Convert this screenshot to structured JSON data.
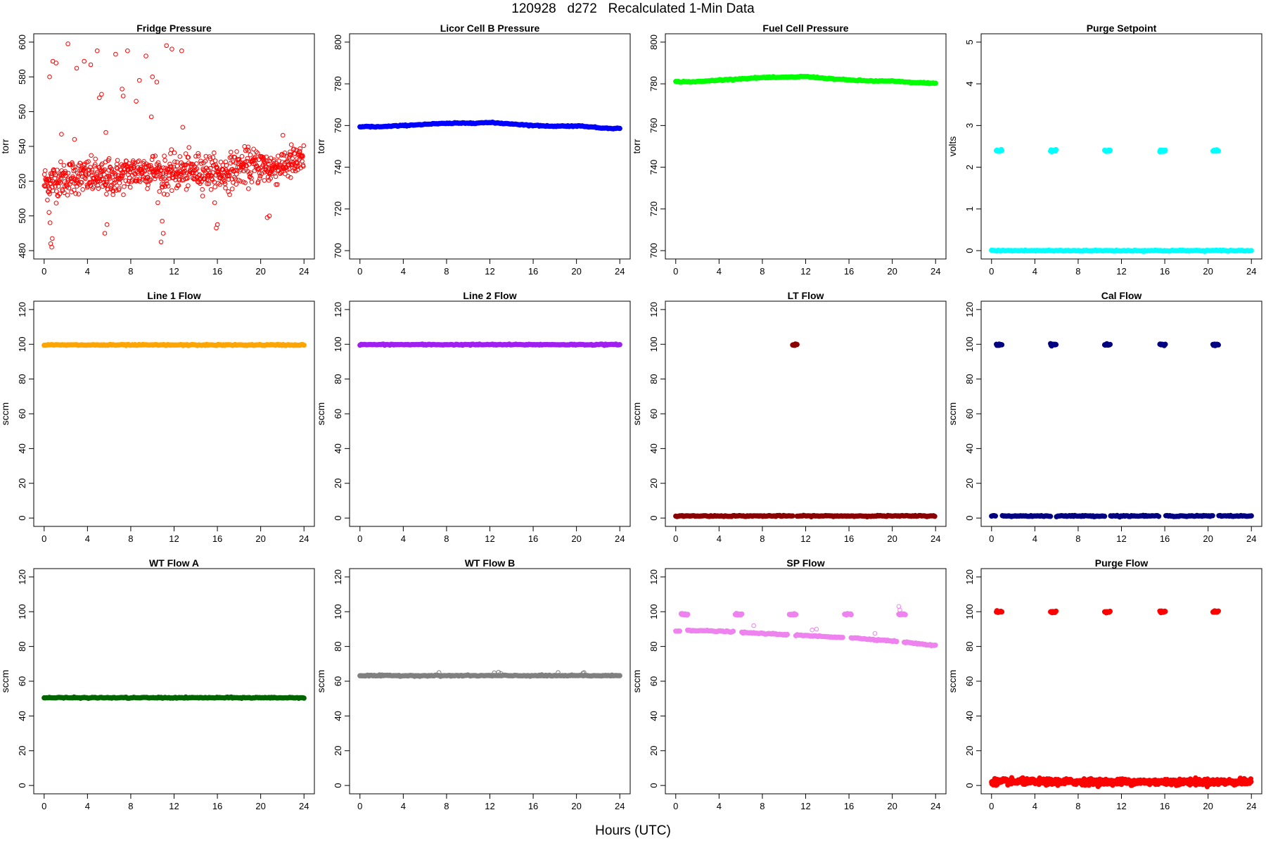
{
  "page": {
    "title": "120928   d272   Recalculated 1-Min Data",
    "xlabel": "Hours (UTC)"
  },
  "chart_data": [
    {
      "type": "scatter",
      "title": "Fridge Pressure",
      "ylabel": "torr",
      "ylim": [
        480,
        600
      ],
      "yticks": [
        480,
        500,
        520,
        540,
        560,
        580,
        600
      ],
      "xlim": [
        0,
        24
      ],
      "xticks": [
        0,
        4,
        8,
        12,
        16,
        20,
        24
      ],
      "color": "#ff0000",
      "marker": "open-circle",
      "series": [
        {
          "kind": "noise",
          "baseline": [
            [
              0,
              519
            ],
            [
              1.5,
              521
            ],
            [
              3,
              523
            ],
            [
              5,
              522
            ],
            [
              6,
              521
            ],
            [
              8,
              525
            ],
            [
              10,
              527
            ],
            [
              11,
              523
            ],
            [
              12,
              525
            ],
            [
              15,
              526
            ],
            [
              16,
              524
            ],
            [
              17,
              525
            ],
            [
              18,
              528
            ],
            [
              20,
              529
            ],
            [
              21,
              527
            ],
            [
              22,
              530
            ],
            [
              24,
              531
            ]
          ],
          "spread": 5
        },
        {
          "kind": "points",
          "x": [
            2.2,
            3.0,
            3.7,
            4.3,
            4.9,
            5.3,
            6.6,
            7.2,
            7.7,
            8.8,
            9.4,
            10.0,
            10.4,
            11.3,
            11.8,
            12.7,
            0.5,
            0.8,
            1.1,
            1.6,
            5.1,
            5.7,
            8.5,
            9.9,
            12.8,
            2.8,
            7.3,
            6.0,
            0.45,
            0.55,
            0.6,
            0.75,
            0.7,
            5.6,
            5.8,
            10.8,
            10.9,
            11.0,
            15.9,
            16.0,
            20.6,
            20.8
          ],
          "y": [
            599,
            585,
            589,
            587,
            595,
            570,
            593,
            573,
            595,
            578,
            592,
            580,
            577,
            598,
            596,
            595,
            580,
            589,
            588,
            547,
            568,
            548,
            566,
            557,
            551,
            544,
            569,
            533,
            502,
            496,
            484,
            487,
            482,
            490,
            495,
            485,
            497,
            490,
            493,
            495,
            499,
            500
          ]
        }
      ]
    },
    {
      "type": "scatter",
      "title": "Licor Cell B Pressure",
      "ylabel": "torr",
      "ylim": [
        700,
        800
      ],
      "yticks": [
        700,
        720,
        740,
        760,
        780,
        800
      ],
      "xlim": [
        0,
        24
      ],
      "xticks": [
        0,
        4,
        8,
        12,
        16,
        20,
        24
      ],
      "color": "#0000ff",
      "marker": "filled-circle",
      "series": [
        {
          "kind": "line",
          "x": [
            0,
            2,
            4,
            6,
            8,
            10,
            12,
            14,
            16,
            18,
            20,
            21,
            22,
            24
          ],
          "y": [
            759.5,
            759.4,
            760,
            760.6,
            761,
            761.2,
            761.4,
            760.8,
            760,
            759.7,
            759.8,
            759.6,
            758.9,
            758.6
          ]
        }
      ]
    },
    {
      "type": "scatter",
      "title": "Fuel Cell Pressure",
      "ylabel": "torr",
      "ylim": [
        700,
        800
      ],
      "yticks": [
        700,
        720,
        740,
        760,
        780,
        800
      ],
      "xlim": [
        0,
        24
      ],
      "xticks": [
        0,
        4,
        8,
        12,
        16,
        20,
        24
      ],
      "color": "#00ff00",
      "marker": "filled-circle",
      "series": [
        {
          "kind": "line",
          "x": [
            0,
            2,
            4,
            6,
            8,
            10,
            12,
            14,
            16,
            18,
            20,
            21,
            22,
            24
          ],
          "y": [
            781,
            781,
            781.8,
            782.4,
            783,
            783.1,
            783.5,
            782.6,
            781.8,
            781.4,
            781.3,
            780.9,
            780.6,
            780.3
          ]
        }
      ]
    },
    {
      "type": "scatter",
      "title": "Purge Setpoint",
      "ylabel": "volts",
      "ylim": [
        0,
        5
      ],
      "yticks": [
        0,
        1,
        2,
        3,
        4,
        5
      ],
      "xlim": [
        0,
        24
      ],
      "xticks": [
        0,
        4,
        8,
        12,
        16,
        20,
        24
      ],
      "color": "#00ffff",
      "marker": "filled-circle",
      "series": [
        {
          "kind": "line",
          "x": [
            0,
            24
          ],
          "y": [
            0,
            0
          ]
        },
        {
          "kind": "clusters",
          "centers": [
            0.7,
            5.7,
            10.7,
            15.8,
            20.7
          ],
          "halfwidth": 0.25,
          "y": 2.4
        }
      ]
    },
    {
      "type": "scatter",
      "title": "Line 1 Flow",
      "ylabel": "sccm",
      "ylim": [
        0,
        120
      ],
      "yticks": [
        0,
        20,
        40,
        60,
        80,
        100,
        120
      ],
      "xlim": [
        0,
        24
      ],
      "xticks": [
        0,
        4,
        8,
        12,
        16,
        20,
        24
      ],
      "color": "#ffa500",
      "marker": "filled-circle",
      "series": [
        {
          "kind": "line",
          "x": [
            0,
            24
          ],
          "y": [
            99.6,
            99.6
          ]
        }
      ]
    },
    {
      "type": "scatter",
      "title": "Line 2 Flow",
      "ylabel": "sccm",
      "ylim": [
        0,
        120
      ],
      "yticks": [
        0,
        20,
        40,
        60,
        80,
        100,
        120
      ],
      "xlim": [
        0,
        24
      ],
      "xticks": [
        0,
        4,
        8,
        12,
        16,
        20,
        24
      ],
      "color": "#a020f0",
      "marker": "filled-circle",
      "series": [
        {
          "kind": "line",
          "x": [
            0,
            24
          ],
          "y": [
            99.8,
            99.8
          ]
        }
      ]
    },
    {
      "type": "scatter",
      "title": "LT Flow",
      "ylabel": "sccm",
      "ylim": [
        0,
        120
      ],
      "yticks": [
        0,
        20,
        40,
        60,
        80,
        100,
        120
      ],
      "xlim": [
        0,
        24
      ],
      "xticks": [
        0,
        4,
        8,
        12,
        16,
        20,
        24
      ],
      "color": "#8b0000",
      "marker": "filled-circle",
      "series": [
        {
          "kind": "line",
          "x": [
            0,
            10.8
          ],
          "y": [
            1.2,
            1.2
          ]
        },
        {
          "kind": "line",
          "x": [
            11.2,
            24
          ],
          "y": [
            1.2,
            1.2
          ]
        },
        {
          "kind": "clusters",
          "centers": [
            11.0
          ],
          "halfwidth": 0.2,
          "y": 99.8
        }
      ]
    },
    {
      "type": "scatter",
      "title": "Cal Flow",
      "ylabel": "sccm",
      "ylim": [
        0,
        120
      ],
      "yticks": [
        0,
        20,
        40,
        60,
        80,
        100,
        120
      ],
      "xlim": [
        0,
        24
      ],
      "xticks": [
        0,
        4,
        8,
        12,
        16,
        20,
        24
      ],
      "color": "#000080",
      "marker": "filled-circle",
      "series": [
        {
          "kind": "line",
          "x": [
            0,
            0.45
          ],
          "y": [
            1.2,
            1.2
          ]
        },
        {
          "kind": "line",
          "x": [
            1.0,
            5.45
          ],
          "y": [
            1.2,
            1.2
          ]
        },
        {
          "kind": "line",
          "x": [
            6.0,
            10.45
          ],
          "y": [
            1.2,
            1.2
          ]
        },
        {
          "kind": "line",
          "x": [
            11.0,
            15.5
          ],
          "y": [
            1.2,
            1.2
          ]
        },
        {
          "kind": "line",
          "x": [
            16.1,
            20.45
          ],
          "y": [
            1.2,
            1.2
          ]
        },
        {
          "kind": "line",
          "x": [
            21.0,
            24
          ],
          "y": [
            1.2,
            1.2
          ]
        },
        {
          "kind": "clusters",
          "centers": [
            0.7,
            5.7,
            10.7,
            15.8,
            20.7
          ],
          "halfwidth": 0.25,
          "y": 99.8
        }
      ]
    },
    {
      "type": "scatter",
      "title": "WT Flow A",
      "ylabel": "sccm",
      "ylim": [
        0,
        120
      ],
      "yticks": [
        0,
        20,
        40,
        60,
        80,
        100,
        120
      ],
      "xlim": [
        0,
        24
      ],
      "xticks": [
        0,
        4,
        8,
        12,
        16,
        20,
        24
      ],
      "color": "#006400",
      "marker": "filled-circle",
      "series": [
        {
          "kind": "line",
          "x": [
            0,
            24
          ],
          "y": [
            50.5,
            50.5
          ]
        }
      ]
    },
    {
      "type": "scatter",
      "title": "WT Flow B",
      "ylabel": "sccm",
      "ylim": [
        0,
        120
      ],
      "yticks": [
        0,
        20,
        40,
        60,
        80,
        100,
        120
      ],
      "xlim": [
        0,
        24
      ],
      "xticks": [
        0,
        4,
        8,
        12,
        16,
        20,
        24
      ],
      "color": "#808080",
      "marker": "filled-circle",
      "series": [
        {
          "kind": "line",
          "x": [
            0,
            24
          ],
          "y": [
            63.2,
            63.2
          ]
        },
        {
          "kind": "points",
          "x": [
            7.3,
            12.4,
            12.8,
            13.0,
            18.3,
            20.6,
            20.7
          ],
          "y": [
            65,
            64.8,
            65.2,
            64.5,
            65,
            64.6,
            65
          ]
        }
      ]
    },
    {
      "type": "scatter",
      "title": "SP Flow",
      "ylabel": "sccm",
      "ylim": [
        0,
        120
      ],
      "yticks": [
        0,
        20,
        40,
        60,
        80,
        100,
        120
      ],
      "xlim": [
        0,
        24
      ],
      "xticks": [
        0,
        4,
        8,
        12,
        16,
        20,
        24
      ],
      "color": "#ee82ee",
      "marker": "filled-circle",
      "series": [
        {
          "kind": "line",
          "x": [
            0,
            0.4
          ],
          "y": [
            89,
            89
          ]
        },
        {
          "kind": "line",
          "x": [
            1.1,
            5.4
          ],
          "y": [
            89.3,
            88.5
          ]
        },
        {
          "kind": "line",
          "x": [
            6.1,
            10.4
          ],
          "y": [
            88,
            86.8
          ]
        },
        {
          "kind": "line",
          "x": [
            11.1,
            15.5
          ],
          "y": [
            86.5,
            85.2
          ]
        },
        {
          "kind": "line",
          "x": [
            16.2,
            20.4
          ],
          "y": [
            85,
            83
          ]
        },
        {
          "kind": "line",
          "x": [
            21.1,
            24
          ],
          "y": [
            82.5,
            80.5
          ]
        },
        {
          "kind": "clusters",
          "centers": [
            0.8,
            5.8,
            10.8,
            15.9,
            20.9
          ],
          "halfwidth": 0.3,
          "y": 98.5
        },
        {
          "kind": "points",
          "x": [
            7.2,
            12.6,
            13.0,
            18.4,
            20.6,
            20.7
          ],
          "y": [
            92,
            89.5,
            90,
            87.5,
            103,
            101
          ]
        }
      ]
    },
    {
      "type": "scatter",
      "title": "Purge Flow",
      "ylabel": "sccm",
      "ylim": [
        0,
        120
      ],
      "yticks": [
        0,
        20,
        40,
        60,
        80,
        100,
        120
      ],
      "xlim": [
        0,
        24
      ],
      "xticks": [
        0,
        4,
        8,
        12,
        16,
        20,
        24
      ],
      "color": "#ff0000",
      "marker": "filled-circle",
      "series": [
        {
          "kind": "noise",
          "baseline": [
            [
              0,
              2.2
            ],
            [
              24,
              2.0
            ]
          ],
          "spread": 0.8
        },
        {
          "kind": "clusters",
          "centers": [
            0.7,
            5.7,
            10.7,
            15.8,
            20.7
          ],
          "halfwidth": 0.25,
          "y": 100
        }
      ]
    }
  ]
}
